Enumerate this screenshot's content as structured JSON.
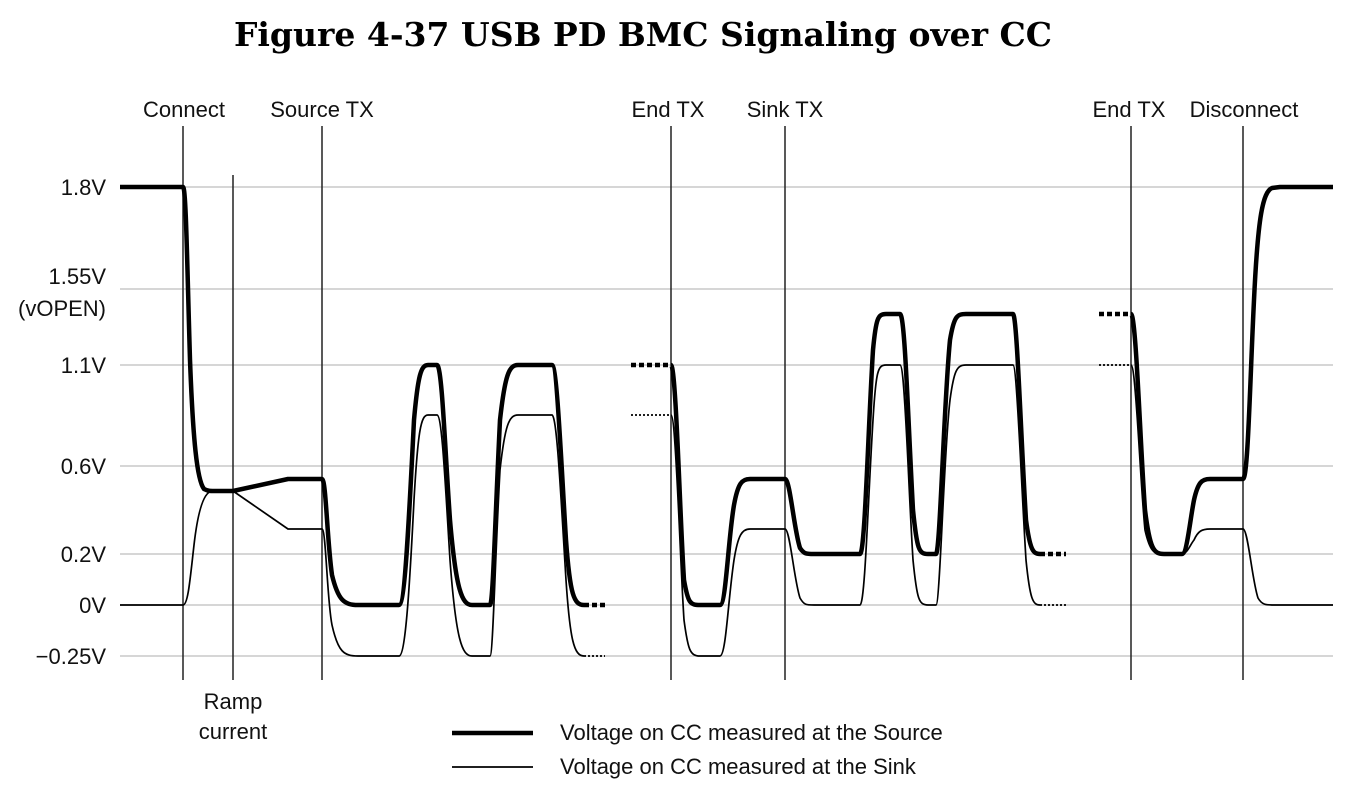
{
  "figure": {
    "title": "Figure 4-37  USB PD BMC Signaling over CC"
  },
  "y_axis": {
    "levels": [
      {
        "label": "1.8V",
        "sub": "",
        "value": 1.8
      },
      {
        "label": "1.55V",
        "sub": "(vOPEN)",
        "value": 1.55
      },
      {
        "label": "1.1V",
        "sub": "",
        "value": 1.1
      },
      {
        "label": "0.6V",
        "sub": "",
        "value": 0.6
      },
      {
        "label": "0.2V",
        "sub": "",
        "value": 0.2
      },
      {
        "label": "0V",
        "sub": "",
        "value": 0
      },
      {
        "label": "−0.25V",
        "sub": "",
        "value": -0.25
      }
    ]
  },
  "events": {
    "connect": "Connect",
    "source_tx": "Source TX",
    "end_tx_1": "End TX",
    "sink_tx": "Sink TX",
    "end_tx_2": "End TX",
    "disconnect": "Disconnect",
    "ramp_current_line1": "Ramp",
    "ramp_current_line2": "current"
  },
  "legend": {
    "source": "Voltage on CC measured at the Source",
    "sink": "Voltage on CC measured at the Sink"
  }
}
